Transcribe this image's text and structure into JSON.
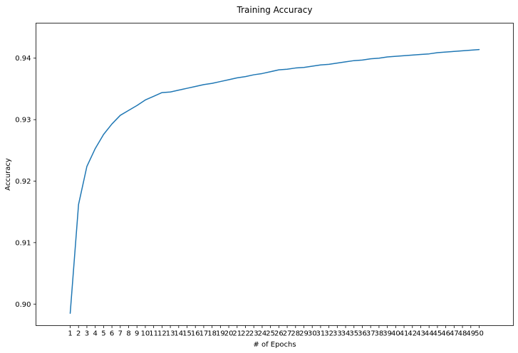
{
  "chart_data": {
    "type": "line",
    "title": "Training Accuracy",
    "xlabel": "# of Epochs",
    "ylabel": "Accuracy",
    "x": [
      1,
      2,
      3,
      4,
      5,
      6,
      7,
      8,
      9,
      10,
      11,
      12,
      13,
      14,
      15,
      16,
      17,
      18,
      19,
      20,
      21,
      22,
      23,
      24,
      25,
      26,
      27,
      28,
      29,
      30,
      31,
      32,
      33,
      34,
      35,
      36,
      37,
      38,
      39,
      40,
      41,
      42,
      43,
      44,
      45,
      46,
      47,
      48,
      49,
      50
    ],
    "xticks": [
      "1",
      "2",
      "3",
      "4",
      "5",
      "6",
      "7",
      "8",
      "9",
      "10",
      "11",
      "12",
      "13",
      "14",
      "15",
      "16",
      "17",
      "18",
      "19",
      "20",
      "21",
      "22",
      "23",
      "24",
      "25",
      "26",
      "27",
      "28",
      "29",
      "30",
      "31",
      "32",
      "33",
      "34",
      "35",
      "36",
      "37",
      "38",
      "39",
      "40",
      "41",
      "42",
      "43",
      "44",
      "45",
      "46",
      "47",
      "48",
      "49",
      "50"
    ],
    "xlim": [
      -3.1,
      54.1
    ],
    "ylim": [
      0.8965,
      0.9457
    ],
    "yticks": [
      0.9,
      0.91,
      0.92,
      0.93,
      0.94
    ],
    "ytick_labels": [
      "0.90",
      "0.91",
      "0.92",
      "0.93",
      "0.94"
    ],
    "series": [
      {
        "color": "#1f77b4",
        "values": [
          0.8985,
          0.9162,
          0.9224,
          0.9253,
          0.9276,
          0.9293,
          0.9307,
          0.9315,
          0.9323,
          0.9332,
          0.9338,
          0.9344,
          0.9345,
          0.9348,
          0.9351,
          0.9354,
          0.9357,
          0.9359,
          0.9362,
          0.9365,
          0.9368,
          0.937,
          0.9373,
          0.9375,
          0.9378,
          0.9381,
          0.9382,
          0.9384,
          0.9385,
          0.9387,
          0.9389,
          0.939,
          0.9392,
          0.9394,
          0.9396,
          0.9397,
          0.9399,
          0.94,
          0.9402,
          0.9403,
          0.9404,
          0.9405,
          0.9406,
          0.9407,
          0.9409,
          0.941,
          0.9411,
          0.9412,
          0.9413,
          0.9414
        ]
      }
    ],
    "grid": false,
    "legend": "none"
  }
}
